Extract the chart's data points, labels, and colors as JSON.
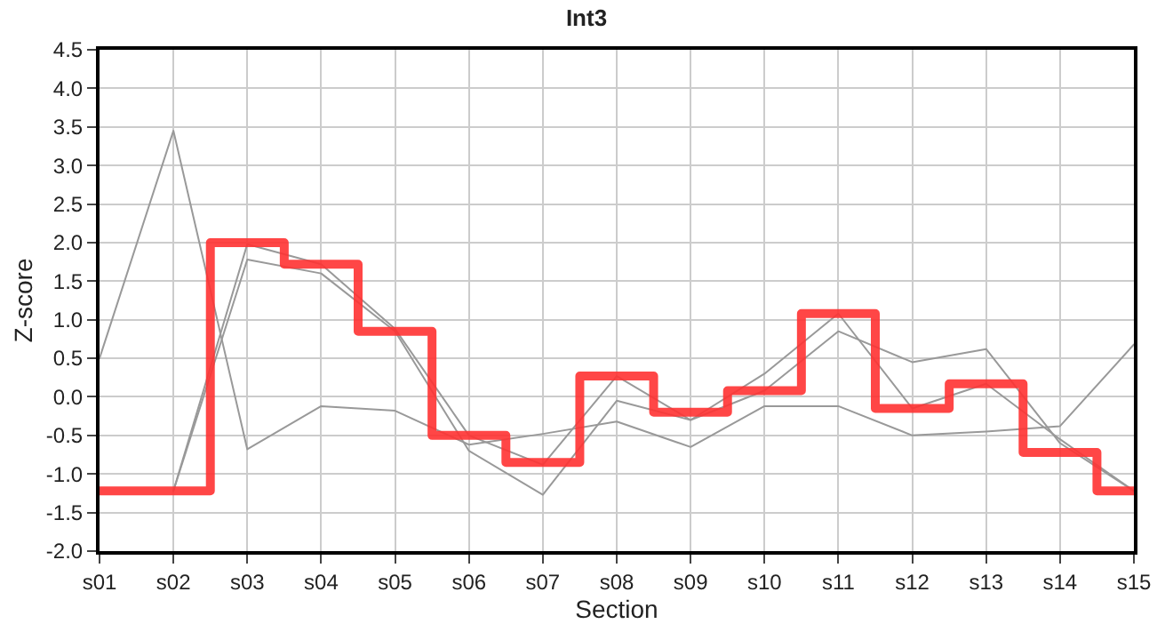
{
  "chart_data": {
    "type": "line",
    "title": "Int3",
    "xlabel": "Section",
    "ylabel": "Z-score",
    "categories": [
      "s01",
      "s02",
      "s03",
      "s04",
      "s05",
      "s06",
      "s07",
      "s08",
      "s09",
      "s10",
      "s11",
      "s12",
      "s13",
      "s14",
      "s15"
    ],
    "series": [
      {
        "color": "#999999",
        "values": [
          0.5,
          3.45,
          -0.68,
          -0.12,
          -0.18,
          -0.62,
          -0.48,
          -0.32,
          -0.65,
          -0.12,
          -0.12,
          -0.5,
          -0.45,
          -0.38,
          0.68
        ]
      },
      {
        "color": "#999999",
        "values": [
          null,
          -1.22,
          1.98,
          1.72,
          0.88,
          -0.5,
          -0.88,
          0.27,
          -0.3,
          0.3,
          1.08,
          -0.15,
          0.17,
          -0.55,
          -1.22
        ]
      },
      {
        "color": "#999999",
        "values": [
          null,
          -1.22,
          1.78,
          1.6,
          0.85,
          -0.7,
          -1.27,
          -0.05,
          -0.3,
          0.08,
          0.85,
          0.45,
          0.62,
          -0.6,
          -1.22
        ]
      },
      {
        "type": "step",
        "color": "#ff3333",
        "values": [
          -1.22,
          -1.22,
          2.0,
          1.72,
          0.85,
          -0.5,
          -0.85,
          0.27,
          -0.2,
          0.08,
          1.08,
          -0.15,
          0.17,
          -0.72,
          -1.22
        ]
      }
    ],
    "ylim": [
      -2.0,
      4.5
    ],
    "yticks": [
      {
        "value": -2.0,
        "label": "-2.0"
      },
      {
        "value": -1.5,
        "label": "-1.5"
      },
      {
        "value": -1.0,
        "label": "-1.0"
      },
      {
        "value": -0.5,
        "label": "-0.5"
      },
      {
        "value": 0.0,
        "label": "0.0"
      },
      {
        "value": 0.5,
        "label": "0.5"
      },
      {
        "value": 1.0,
        "label": "1.0"
      },
      {
        "value": 1.5,
        "label": "1.5"
      },
      {
        "value": 2.0,
        "label": "2.0"
      },
      {
        "value": 2.5,
        "label": "2.5"
      },
      {
        "value": 3.0,
        "label": "3.0"
      },
      {
        "value": 3.5,
        "label": "3.5"
      },
      {
        "value": 4.0,
        "label": "4.0"
      },
      {
        "value": 4.5,
        "label": "4.5"
      }
    ],
    "grid": true,
    "marker": "none",
    "line_style": "solid"
  }
}
